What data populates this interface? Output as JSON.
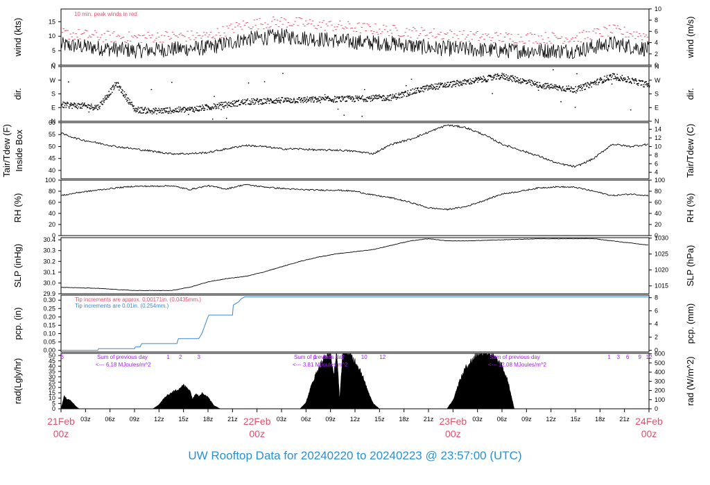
{
  "footer": "UW Rooftop Data for 20240220  to  20240223 @ 23:57:00  (UTC)",
  "colors": {
    "red": "#e0506a",
    "blue": "#3a86d8",
    "purple": "#a020f0",
    "black": "#000000"
  },
  "chart_data": [
    {
      "id": "wind",
      "type": "line",
      "ylabel_left": "wind (kts)",
      "ylabel_right": "wind (m/s)",
      "ylim": [
        0,
        19.4
      ],
      "yticks_left": [
        0,
        5,
        10,
        15
      ],
      "yticks_right": [
        0,
        2,
        4,
        6,
        8,
        10
      ],
      "annotation": "10 min. peak winds in red",
      "series": [
        {
          "role": "wind-speed-kts",
          "x": [
            0,
            6,
            12,
            18,
            24,
            30,
            36,
            42,
            48,
            54,
            60,
            66,
            72,
            78,
            84,
            90,
            96
          ],
          "values": [
            7,
            6,
            5,
            5.5,
            6,
            9,
            10,
            9,
            8,
            7.5,
            6,
            5.5,
            5,
            5,
            5,
            7.5,
            5.5
          ]
        },
        {
          "role": "peak-gust-kts",
          "x": [
            0,
            6,
            12,
            18,
            24,
            30,
            36,
            42,
            48,
            54,
            60,
            66,
            72,
            78,
            84,
            90,
            96
          ],
          "values": [
            11,
            10,
            9.5,
            10,
            10,
            14,
            15,
            14,
            13,
            12,
            11,
            10,
            9.5,
            9.5,
            9.5,
            12,
            10
          ]
        }
      ]
    },
    {
      "id": "dir",
      "type": "scatter",
      "ylabel_left": "dir.",
      "ylabel_right": "dir.",
      "yticks": [
        "N",
        "E",
        "S",
        "W",
        "N"
      ],
      "series": [
        {
          "role": "wind-direction-deg",
          "x": [
            0,
            3,
            6,
            9,
            12,
            15,
            18,
            21,
            24,
            30,
            36,
            42,
            48,
            54,
            60,
            66,
            72,
            78,
            84,
            90,
            96
          ],
          "values": [
            110,
            105,
            95,
            250,
            80,
            70,
            75,
            80,
            95,
            130,
            140,
            145,
            150,
            160,
            225,
            260,
            300,
            240,
            210,
            300,
            240
          ]
        }
      ]
    },
    {
      "id": "temp",
      "type": "line",
      "ylabel_left": "Tair/Tdew (F)\nInside Box",
      "ylabel_right": "Tair/Tdew (C)",
      "ylim": [
        36.5,
        60
      ],
      "yticks_left": [
        40,
        45,
        50,
        55,
        60
      ],
      "yticks_right": [
        4,
        6,
        8,
        10,
        12,
        14
      ],
      "series": [
        {
          "role": "air-temp-f",
          "x": [
            0,
            3,
            6,
            9,
            12,
            15,
            18,
            21,
            24,
            27,
            30,
            33,
            36,
            39,
            42,
            45,
            48,
            51,
            54,
            57,
            60,
            63,
            66,
            69,
            72,
            75,
            78,
            81,
            84,
            87,
            90,
            93,
            96
          ],
          "values": [
            55.5,
            53,
            51.5,
            50,
            49,
            48,
            47,
            47,
            47.5,
            49,
            50.5,
            50,
            49,
            49,
            48.5,
            48.5,
            48,
            47,
            51,
            53,
            56,
            59,
            58,
            55,
            51,
            48.5,
            46,
            43,
            41.5,
            45,
            51,
            50,
            51
          ]
        }
      ]
    },
    {
      "id": "rh",
      "type": "line",
      "ylabel_left": "RH (%)",
      "ylabel_right": "RH (%)",
      "ylim": [
        0,
        100
      ],
      "yticks_left": [
        0,
        20,
        40,
        60,
        80,
        100
      ],
      "yticks_right": [
        0,
        20,
        40,
        60,
        80,
        100
      ],
      "series": [
        {
          "role": "relative-humidity",
          "x": [
            0,
            3,
            6,
            9,
            12,
            15,
            18,
            21,
            24,
            27,
            30,
            33,
            36,
            39,
            42,
            45,
            48,
            51,
            54,
            57,
            60,
            63,
            66,
            69,
            72,
            75,
            78,
            81,
            84,
            87,
            90,
            93,
            96
          ],
          "values": [
            72,
            78,
            82,
            86,
            89,
            89,
            90,
            83,
            90,
            84,
            92,
            88,
            85,
            83,
            82,
            82,
            80,
            73,
            68,
            60,
            50,
            47,
            52,
            63,
            75,
            80,
            86,
            88,
            87,
            80,
            72,
            75,
            72
          ]
        }
      ]
    },
    {
      "id": "slp",
      "type": "line",
      "ylabel_left": "SLP (inHg)",
      "ylabel_right": "SLP (hPa)",
      "ylim": [
        29.9,
        30.42
      ],
      "yticks_left": [
        "29.9",
        "30.0",
        "30.1",
        "30.2",
        "30.3",
        "30.4"
      ],
      "yticks_right": [
        1015,
        1020,
        1025,
        1030
      ],
      "series": [
        {
          "role": "sea-level-pressure-inhg",
          "x": [
            0,
            6,
            12,
            18,
            21,
            24,
            27,
            30,
            33,
            36,
            39,
            42,
            45,
            48,
            51,
            54,
            57,
            60,
            63,
            66,
            72,
            78,
            84,
            87,
            90,
            93,
            96
          ],
          "values": [
            29.96,
            29.95,
            29.93,
            29.93,
            29.96,
            30.01,
            30.04,
            30.06,
            30.1,
            30.15,
            30.2,
            30.24,
            30.27,
            30.29,
            30.31,
            30.35,
            30.39,
            30.41,
            30.39,
            30.39,
            30.4,
            30.41,
            30.41,
            30.41,
            30.39,
            30.37,
            30.35
          ]
        }
      ]
    },
    {
      "id": "pcp",
      "type": "line",
      "ylabel_left": "pcp. (in)",
      "ylabel_right": "pcp. (mm)",
      "ylim": [
        -0.01,
        0.33
      ],
      "yticks_left": [
        "0.00",
        "0.05",
        "0.10",
        "0.15",
        "0.20",
        "0.25",
        "0.30"
      ],
      "yticks_right": [
        0,
        2,
        4,
        6,
        8
      ],
      "annotation_1": "Tip increments are approx. 0.00171in. (0.0435mm.)",
      "annotation_2": "Tip increments are 0.01in. (0.254mm.)",
      "series": [
        {
          "role": "cumulative-precip-in",
          "x": [
            0,
            6,
            6.1,
            12,
            12.1,
            13,
            13.1,
            19,
            19.1,
            22.5,
            23,
            23.5,
            24,
            24.1,
            28,
            28.1,
            29,
            29.5,
            30,
            30.5,
            96
          ],
          "values": [
            0,
            0,
            0.01,
            0.01,
            0.02,
            0.02,
            0.04,
            0.04,
            0.07,
            0.07,
            0.1,
            0.15,
            0.2,
            0.21,
            0.21,
            0.27,
            0.29,
            0.31,
            0.32,
            0.32,
            0.32
          ]
        }
      ]
    },
    {
      "id": "rad",
      "type": "area",
      "ylabel_left": "rad(Lgly/hr)",
      "ylabel_right": "rad (W/m^2)",
      "ylim": [
        0,
        52
      ],
      "yticks_left": [
        0,
        5,
        10,
        15,
        20,
        25,
        30,
        35,
        40,
        45,
        50
      ],
      "yticks_right": [
        0,
        100,
        200,
        300,
        400,
        500,
        600
      ],
      "daily_sums": [
        "Sum of previous day\n<--- 6.18 MJoules/m^2",
        "Sum of previous day\n<--- 3.81 MJoules/m^2",
        "Sum of previous day\n<--- 12.08 MJoules/m^2"
      ],
      "hour_marks": [
        {
          "x": 0.2,
          "label": "6"
        },
        {
          "x": 17.5,
          "label": "1"
        },
        {
          "x": 19.5,
          "label": "2"
        },
        {
          "x": 22.5,
          "label": "3"
        },
        {
          "x": 41.5,
          "label": "1"
        },
        {
          "x": 43,
          "label": "3"
        },
        {
          "x": 44,
          "label": "5"
        },
        {
          "x": 46,
          "label": "7"
        },
        {
          "x": 49.5,
          "label": "10"
        },
        {
          "x": 52.5,
          "label": "12"
        },
        {
          "x": 89.5,
          "label": "1"
        },
        {
          "x": 91,
          "label": "3"
        },
        {
          "x": 92.5,
          "label": "6"
        },
        {
          "x": 94.5,
          "label": "9"
        },
        {
          "x": 96,
          "label": "12"
        }
      ],
      "series": [
        {
          "role": "solar-radiation",
          "x": [
            0,
            0.5,
            1,
            1.5,
            2,
            2.5,
            3,
            15,
            16,
            17,
            18,
            19,
            20,
            21,
            21.5,
            22,
            22.5,
            23,
            24,
            25,
            26,
            39,
            40,
            41,
            42,
            43,
            44,
            44.5,
            45,
            45.5,
            46,
            46.5,
            47,
            48,
            49,
            50,
            51,
            52,
            63,
            64,
            65,
            66,
            67,
            68,
            69,
            70,
            71,
            72,
            73,
            74
          ],
          "values": [
            0,
            12,
            9,
            8,
            5,
            2,
            0,
            0,
            4,
            11,
            15,
            18,
            22,
            18,
            9,
            15,
            12,
            15,
            11,
            3,
            0,
            0,
            6,
            24,
            38,
            48,
            53,
            30,
            54,
            8,
            55,
            55,
            52,
            45,
            35,
            18,
            5,
            0,
            0,
            8,
            25,
            38,
            45,
            52,
            54,
            52,
            47,
            40,
            25,
            0
          ]
        }
      ]
    }
  ],
  "x_axis": {
    "ticks": [
      {
        "x": 0,
        "label": "21Feb\n00z",
        "major": true
      },
      {
        "x": 3,
        "label": "03z"
      },
      {
        "x": 6,
        "label": "06z"
      },
      {
        "x": 9,
        "label": "09z"
      },
      {
        "x": 12,
        "label": "12z"
      },
      {
        "x": 15,
        "label": "15z"
      },
      {
        "x": 18,
        "label": "18z"
      },
      {
        "x": 21,
        "label": "21z"
      },
      {
        "x": 24,
        "label": "22Feb\n00z",
        "major": true
      },
      {
        "x": 27,
        "label": "03z"
      },
      {
        "x": 30,
        "label": "06z"
      },
      {
        "x": 33,
        "label": "09z"
      },
      {
        "x": 36,
        "label": "12z"
      },
      {
        "x": 39,
        "label": "15z"
      },
      {
        "x": 42,
        "label": "18z"
      },
      {
        "x": 45,
        "label": "21z"
      },
      {
        "x": 48,
        "label": "23Feb\n00z",
        "major": true
      },
      {
        "x": 51,
        "label": "03z"
      },
      {
        "x": 54,
        "label": "06z"
      },
      {
        "x": 57,
        "label": "09z"
      },
      {
        "x": 60,
        "label": "12z"
      },
      {
        "x": 63,
        "label": "15z"
      },
      {
        "x": 66,
        "label": "18z"
      },
      {
        "x": 69,
        "label": "21z"
      },
      {
        "x": 72,
        "label": "24Feb\n00z",
        "major": true
      }
    ]
  }
}
